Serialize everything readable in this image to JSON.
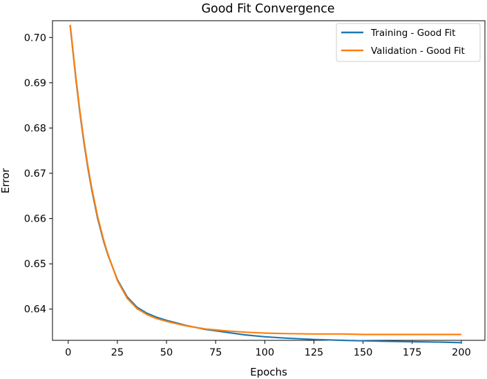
{
  "chart_data": {
    "type": "line",
    "title": "Good Fit Convergence",
    "xlabel": "Epochs",
    "ylabel": "Error",
    "xlim": [
      -8,
      212
    ],
    "ylim": [
      0.6331,
      0.7037
    ],
    "xticks": [
      0,
      25,
      50,
      75,
      100,
      125,
      150,
      175,
      200
    ],
    "xtick_labels": [
      "0",
      "25",
      "50",
      "75",
      "100",
      "125",
      "150",
      "175",
      "200"
    ],
    "yticks": [
      0.64,
      0.65,
      0.66,
      0.67,
      0.68,
      0.69,
      0.7
    ],
    "ytick_labels": [
      "0.64",
      "0.65",
      "0.66",
      "0.67",
      "0.68",
      "0.69",
      "0.70"
    ],
    "grid": false,
    "legend_position": "top-right",
    "series": [
      {
        "name": "Training - Good Fit",
        "color": "#1f77b4",
        "x": [
          1,
          2,
          3,
          4,
          5,
          6,
          8,
          10,
          12,
          15,
          18,
          20,
          25,
          30,
          35,
          40,
          45,
          50,
          60,
          70,
          75,
          80,
          90,
          100,
          110,
          125,
          140,
          150,
          160,
          175,
          190,
          200
        ],
        "y": [
          0.7026,
          0.6985,
          0.6945,
          0.6905,
          0.6868,
          0.6832,
          0.6768,
          0.6712,
          0.6663,
          0.66,
          0.655,
          0.6522,
          0.6465,
          0.6427,
          0.6404,
          0.6391,
          0.6382,
          0.6375,
          0.6364,
          0.6355,
          0.6352,
          0.6349,
          0.6343,
          0.6339,
          0.6336,
          0.6333,
          0.6331,
          0.633,
          0.6329,
          0.6328,
          0.6327,
          0.6326
        ]
      },
      {
        "name": "Validation - Good Fit",
        "color": "#ff7f0e",
        "x": [
          1,
          2,
          3,
          4,
          5,
          6,
          8,
          10,
          12,
          15,
          18,
          20,
          25,
          30,
          35,
          40,
          45,
          50,
          60,
          70,
          75,
          80,
          90,
          100,
          110,
          125,
          140,
          150,
          160,
          175,
          190,
          200
        ],
        "y": [
          0.7028,
          0.6988,
          0.6948,
          0.6909,
          0.6872,
          0.6836,
          0.6772,
          0.6716,
          0.6667,
          0.6604,
          0.6553,
          0.6524,
          0.6463,
          0.6424,
          0.6401,
          0.6388,
          0.6379,
          0.6373,
          0.6363,
          0.6356,
          0.6354,
          0.6352,
          0.6349,
          0.6347,
          0.6346,
          0.6345,
          0.6345,
          0.6344,
          0.6344,
          0.6344,
          0.6344,
          0.6344
        ]
      }
    ]
  }
}
